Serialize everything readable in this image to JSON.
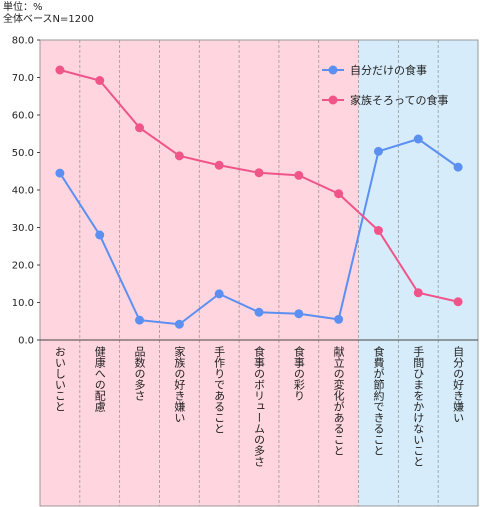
{
  "header": {
    "unit_label": "単位：%",
    "base_label": "全体ベースN=1200"
  },
  "chart_data": {
    "type": "line",
    "categories": [
      "おいしいこと",
      "健康への配慮",
      "品数の多さ",
      "家族の好き嫌い",
      "手作りであること",
      "食事のボリュームの多さ",
      "食事の彩り",
      "献立の変化があること",
      "食費が節約できること",
      "手間ひまをかけないこと",
      "自分の好き嫌い"
    ],
    "series": [
      {
        "name": "自分だけの食事",
        "color": "#5b8ff2",
        "values": [
          44.5,
          28.0,
          5.3,
          4.2,
          12.3,
          7.4,
          7.0,
          5.5,
          50.3,
          53.6,
          46.1
        ]
      },
      {
        "name": "家族そろっての食事",
        "color": "#f0558a",
        "values": [
          72.0,
          69.2,
          56.6,
          49.1,
          46.6,
          44.6,
          43.9,
          39.0,
          29.2,
          12.6,
          10.2
        ]
      }
    ],
    "ylim": [
      0,
      80
    ],
    "yticks": [
      "0.0",
      "10.0",
      "20.0",
      "30.0",
      "40.0",
      "50.0",
      "60.0",
      "70.0",
      "80.0"
    ],
    "background_bands": [
      {
        "from_category": 0,
        "to_category": 7,
        "color": "#ffd6df"
      },
      {
        "from_category": 8,
        "to_category": 10,
        "color": "#d6ecfa"
      }
    ],
    "grid": "vertical-dashed",
    "legend_position": "top-right"
  }
}
